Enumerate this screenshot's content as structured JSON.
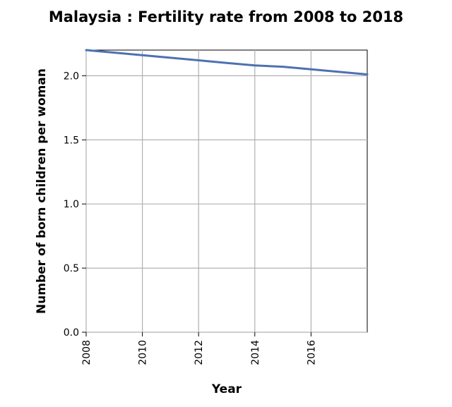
{
  "chart_data": {
    "type": "line",
    "title": "Malaysia : Fertility rate from 2008 to 2018",
    "xlabel": "Year",
    "ylabel": "Number of born children per woman",
    "xlim": [
      2008,
      2018
    ],
    "ylim": [
      0,
      2.2
    ],
    "x_ticks": [
      2008,
      2010,
      2012,
      2014,
      2016
    ],
    "x_tick_labels": [
      "2008",
      "2010",
      "2012",
      "2014",
      "2016"
    ],
    "y_ticks": [
      0,
      0.5,
      1.0,
      1.5,
      2.0
    ],
    "y_tick_labels": [
      "0.0",
      "0.5",
      "1.0",
      "1.5",
      "2.0"
    ],
    "grid": true,
    "series": [
      {
        "color": "#4c72b0",
        "x": [
          2008,
          2009,
          2010,
          2011,
          2012,
          2013,
          2014,
          2015,
          2016,
          2017,
          2018
        ],
        "y": [
          2.2,
          2.18,
          2.16,
          2.14,
          2.12,
          2.1,
          2.08,
          2.07,
          2.05,
          2.03,
          2.01
        ]
      }
    ]
  }
}
